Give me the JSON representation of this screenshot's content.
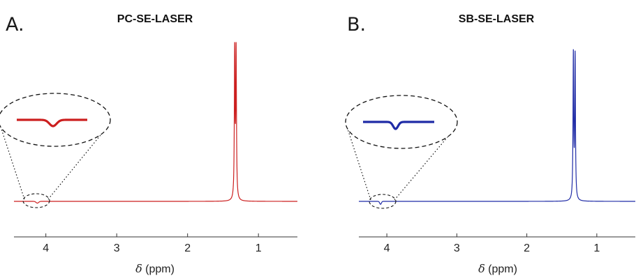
{
  "chart_data": [
    {
      "type": "line",
      "panel_letter": "A.",
      "title": "PC-SE-LASER",
      "xlabel_symbol": "δ",
      "xlabel_unit": "(ppm)",
      "x_reversed": true,
      "xlim": [
        4.45,
        0.45
      ],
      "ylim": [
        -0.05,
        1.05
      ],
      "xticks": [
        4,
        3,
        2,
        1
      ],
      "grid": false,
      "color": "#cc1f1f",
      "peaks": [
        {
          "center": 1.335,
          "height": 1.0,
          "width": 0.006
        },
        {
          "center": 1.315,
          "height": 1.0,
          "width": 0.006
        }
      ],
      "dip": {
        "center": 4.12,
        "depth": 0.012,
        "width": 0.018
      },
      "inset": {
        "x_range": [
          4.3,
          3.95
        ],
        "shape": "zoomed-ellipse"
      }
    },
    {
      "type": "line",
      "panel_letter": "B.",
      "title": "SB-SE-LASER",
      "xlabel_symbol": "δ",
      "xlabel_unit": "(ppm)",
      "x_reversed": true,
      "xlim": [
        4.4,
        0.45
      ],
      "ylim": [
        -0.05,
        1.05
      ],
      "xticks": [
        4,
        3,
        2,
        1
      ],
      "grid": false,
      "color": "#1f2ba6",
      "peaks": [
        {
          "center": 1.335,
          "height": 0.98,
          "width": 0.006
        },
        {
          "center": 1.31,
          "height": 0.97,
          "width": 0.006
        }
      ],
      "dip": {
        "center": 4.09,
        "depth": 0.02,
        "width": 0.012
      },
      "inset": {
        "x_range": [
          4.25,
          3.9
        ],
        "shape": "zoomed-ellipse"
      }
    }
  ]
}
